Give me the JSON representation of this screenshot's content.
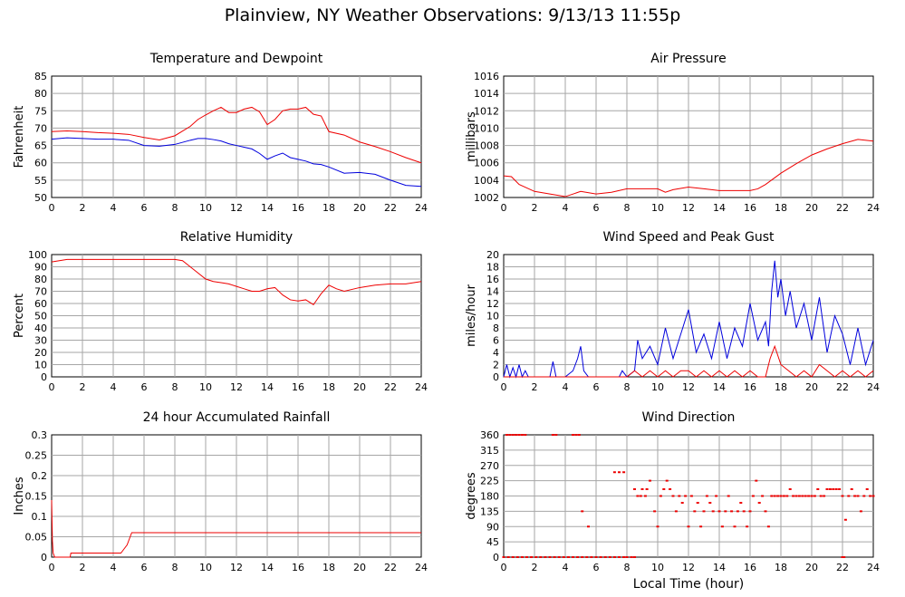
{
  "page": {
    "title": "Plainview, NY Weather Observations: 9/13/13 11:55p",
    "x_axis_label": "Local Time (hour)"
  },
  "colors": {
    "red": "#ee0000",
    "blue": "#0000dd"
  },
  "chart_data": [
    {
      "id": "temp",
      "type": "line",
      "title": "Temperature and Dewpoint",
      "ylabel": "Fahrenheit",
      "xlabel": "",
      "xlim": [
        0,
        24
      ],
      "ylim": [
        50,
        85
      ],
      "xticks": [
        0,
        2,
        4,
        6,
        8,
        10,
        12,
        14,
        16,
        18,
        20,
        22,
        24
      ],
      "yticks": [
        50,
        55,
        60,
        65,
        70,
        75,
        80,
        85
      ],
      "grid": true,
      "series": [
        {
          "color": "#ee0000",
          "x": [
            0,
            1,
            2,
            3,
            4,
            5,
            6,
            7,
            8,
            9,
            9.5,
            10,
            10.5,
            11,
            11.5,
            12,
            12.5,
            13,
            13.5,
            14,
            14.5,
            15,
            15.5,
            16,
            16.5,
            17,
            17.5,
            18,
            19,
            20,
            21,
            22,
            23,
            24
          ],
          "y": [
            69,
            69.2,
            69,
            68.7,
            68.5,
            68.2,
            67.3,
            66.6,
            67.8,
            70.5,
            72.5,
            73.8,
            75,
            76,
            74.5,
            74.5,
            75.5,
            76,
            74.7,
            71,
            72.5,
            75,
            75.5,
            75.5,
            76,
            74,
            73.5,
            69,
            68,
            66,
            64.7,
            63.2,
            61.5,
            60
          ]
        },
        {
          "color": "#0000dd",
          "x": [
            0,
            1,
            2,
            3,
            4,
            5,
            6,
            7,
            8,
            9,
            9.5,
            10,
            10.5,
            11,
            11.5,
            12,
            12.5,
            13,
            13.5,
            14,
            14.5,
            15,
            15.5,
            16,
            16.5,
            17,
            17.5,
            18,
            19,
            20,
            21,
            22,
            23,
            24
          ],
          "y": [
            66.8,
            67.2,
            67,
            66.8,
            66.8,
            66.5,
            65,
            64.8,
            65.3,
            66.5,
            67,
            67,
            66.7,
            66.3,
            65.5,
            65,
            64.5,
            64,
            62.7,
            61,
            62,
            62.8,
            61.5,
            61,
            60.5,
            59.7,
            59.5,
            58.8,
            57,
            57.2,
            56.7,
            55,
            53.5,
            53.2
          ]
        }
      ]
    },
    {
      "id": "pressure",
      "type": "line",
      "title": "Air Pressure",
      "ylabel": "millibars",
      "xlabel": "",
      "xlim": [
        0,
        24
      ],
      "ylim": [
        1002,
        1016
      ],
      "xticks": [
        0,
        2,
        4,
        6,
        8,
        10,
        12,
        14,
        16,
        18,
        20,
        22,
        24
      ],
      "yticks": [
        1002,
        1004,
        1006,
        1008,
        1010,
        1012,
        1014,
        1016
      ],
      "grid": true,
      "series": [
        {
          "color": "#ee0000",
          "x": [
            0,
            0.5,
            1,
            2,
            3,
            4,
            5,
            6,
            7,
            8,
            9,
            10,
            10.5,
            11,
            12,
            13,
            14,
            15,
            16,
            16.5,
            17,
            18,
            19,
            20,
            21,
            22,
            23,
            24
          ],
          "y": [
            1004.5,
            1004.4,
            1003.5,
            1002.7,
            1002.4,
            1002.1,
            1002.7,
            1002.4,
            1002.6,
            1003,
            1003,
            1003,
            1002.6,
            1002.9,
            1003.2,
            1003,
            1002.8,
            1002.8,
            1002.8,
            1003,
            1003.5,
            1004.8,
            1005.9,
            1006.9,
            1007.6,
            1008.2,
            1008.7,
            1008.5
          ]
        }
      ]
    },
    {
      "id": "humidity",
      "type": "line",
      "title": "Relative Humidity",
      "ylabel": "Percent",
      "xlabel": "",
      "xlim": [
        0,
        24
      ],
      "ylim": [
        0,
        100
      ],
      "xticks": [
        0,
        2,
        4,
        6,
        8,
        10,
        12,
        14,
        16,
        18,
        20,
        22,
        24
      ],
      "yticks": [
        0,
        10,
        20,
        30,
        40,
        50,
        60,
        70,
        80,
        90,
        100
      ],
      "grid": true,
      "series": [
        {
          "color": "#ee0000",
          "x": [
            0,
            0.5,
            1,
            2,
            3,
            4,
            5,
            6,
            7,
            8,
            8.5,
            9,
            9.5,
            10,
            10.5,
            11,
            11.5,
            12,
            12.5,
            13,
            13.5,
            14,
            14.5,
            15,
            15.5,
            16,
            16.5,
            17,
            17.5,
            18,
            18.5,
            19,
            20,
            21,
            22,
            23,
            24
          ],
          "y": [
            94,
            95,
            96,
            96,
            96,
            96,
            96,
            96,
            96,
            96,
            95,
            90,
            85,
            80,
            78,
            77,
            76,
            74,
            72,
            70,
            70,
            72,
            73,
            67,
            63,
            62,
            63,
            59,
            68,
            75,
            72,
            70,
            73,
            75,
            76,
            76,
            78
          ]
        }
      ]
    },
    {
      "id": "wind",
      "type": "line",
      "title": "Wind Speed and Peak Gust",
      "ylabel": "miles/hour",
      "xlabel": "",
      "xlim": [
        0,
        24
      ],
      "ylim": [
        0,
        20
      ],
      "xticks": [
        0,
        2,
        4,
        6,
        8,
        10,
        12,
        14,
        16,
        18,
        20,
        22,
        24
      ],
      "yticks": [
        0,
        2,
        4,
        6,
        8,
        10,
        12,
        14,
        16,
        18,
        20
      ],
      "grid": true,
      "series": [
        {
          "color": "#0000dd",
          "x": [
            0,
            0.2,
            0.4,
            0.6,
            0.8,
            1,
            1.2,
            1.4,
            1.6,
            3,
            3.2,
            3.4,
            4,
            4.5,
            4.8,
            5,
            5.2,
            5.5,
            6,
            7,
            7.5,
            7.7,
            8,
            8.5,
            8.7,
            9,
            9.5,
            10,
            10.5,
            11,
            11.5,
            12,
            12.5,
            13,
            13.5,
            14,
            14.5,
            15,
            15.5,
            16,
            16.5,
            17,
            17.2,
            17.4,
            17.6,
            17.8,
            18,
            18.3,
            18.6,
            19,
            19.5,
            20,
            20.5,
            21,
            21.5,
            22,
            22.5,
            23,
            23.5,
            24
          ],
          "y": [
            0,
            2,
            0,
            1.5,
            0,
            2,
            0,
            1,
            0,
            0,
            2.5,
            0,
            0,
            1,
            3,
            5,
            1,
            0,
            0,
            0,
            0,
            1,
            0,
            1,
            6,
            3,
            5,
            2,
            8,
            3,
            7,
            11,
            4,
            7,
            3,
            9,
            3,
            8,
            5,
            12,
            6,
            9,
            5,
            14,
            19,
            13,
            16,
            10,
            14,
            8,
            12,
            6,
            13,
            4,
            10,
            7,
            2,
            8,
            2,
            6
          ]
        },
        {
          "color": "#ee0000",
          "x": [
            0,
            8,
            8.5,
            9,
            9.5,
            10,
            10.5,
            11,
            11.5,
            12,
            12.5,
            13,
            13.5,
            14,
            14.5,
            15,
            15.5,
            16,
            16.5,
            17,
            17.3,
            17.6,
            18,
            18.5,
            19,
            19.5,
            20,
            20.5,
            21,
            21.5,
            22,
            22.5,
            23,
            23.5,
            24
          ],
          "y": [
            0,
            0,
            1,
            0,
            1,
            0,
            1,
            0,
            1,
            1,
            0,
            1,
            0,
            1,
            0,
            1,
            0,
            1,
            0,
            0,
            3,
            5,
            2,
            1,
            0,
            1,
            0,
            2,
            1,
            0,
            1,
            0,
            1,
            0,
            1
          ]
        }
      ]
    },
    {
      "id": "rain",
      "type": "line",
      "title": "24 hour Accumulated Rainfall",
      "ylabel": "Inches",
      "xlabel": "",
      "xlim": [
        0,
        24
      ],
      "ylim": [
        0,
        0.3
      ],
      "xticks": [
        0,
        2,
        4,
        6,
        8,
        10,
        12,
        14,
        16,
        18,
        20,
        22,
        24
      ],
      "yticks": [
        0,
        0.05,
        0.1,
        0.15,
        0.2,
        0.25,
        0.3
      ],
      "grid": true,
      "series": [
        {
          "color": "#ee0000",
          "x": [
            0,
            0.02,
            0.05,
            0.1,
            0.2,
            1.2,
            1.25,
            4.5,
            4.7,
            4.9,
            5,
            5.1,
            5.2,
            24
          ],
          "y": [
            0.14,
            0.1,
            0.04,
            0.01,
            0,
            0,
            0.01,
            0.01,
            0.02,
            0.03,
            0.04,
            0.05,
            0.06,
            0.06
          ]
        }
      ]
    },
    {
      "id": "direction",
      "type": "scatter",
      "title": "Wind Direction",
      "ylabel": "degrees",
      "xlabel": "Local Time (hour)",
      "xlim": [
        0,
        24
      ],
      "ylim": [
        0,
        360
      ],
      "xticks": [
        0,
        2,
        4,
        6,
        8,
        10,
        12,
        14,
        16,
        18,
        20,
        22,
        24
      ],
      "yticks": [
        0,
        45,
        90,
        135,
        180,
        225,
        270,
        315,
        360
      ],
      "grid": true,
      "series": [
        {
          "color": "#ee0000",
          "x": [
            0.2,
            0.4,
            0.6,
            0.8,
            1,
            1.2,
            1.4,
            3.2,
            3.4,
            4.5,
            4.7,
            4.9,
            5.1,
            5.5,
            7.2,
            7.5,
            7.8,
            8.5,
            8.7,
            8.9,
            9,
            9.2,
            9.3,
            9.5,
            9.8,
            10,
            10.2,
            10.4,
            10.6,
            10.8,
            11,
            11.2,
            11.4,
            11.6,
            11.8,
            12,
            12.2,
            12.4,
            12.6,
            12.8,
            13,
            13.2,
            13.4,
            13.6,
            13.8,
            14,
            14.2,
            14.4,
            14.6,
            14.8,
            15,
            15.2,
            15.4,
            15.6,
            15.8,
            16,
            16.2,
            16.4,
            16.6,
            16.8,
            17,
            17.2,
            17.4,
            17.6,
            17.8,
            18,
            18.2,
            18.4,
            18.6,
            18.8,
            19,
            19.2,
            19.4,
            19.6,
            19.8,
            20,
            20.2,
            20.4,
            20.6,
            20.8,
            21,
            21.2,
            21.4,
            21.6,
            21.8,
            22,
            22.2,
            22.4,
            22.6,
            22.8,
            23,
            23.2,
            23.4,
            23.6,
            23.8,
            24
          ],
          "y": [
            360,
            360,
            360,
            360,
            360,
            360,
            360,
            360,
            360,
            360,
            360,
            360,
            135,
            90,
            250,
            250,
            250,
            200,
            180,
            180,
            200,
            180,
            200,
            225,
            135,
            90,
            180,
            200,
            225,
            200,
            180,
            135,
            180,
            160,
            180,
            90,
            180,
            135,
            160,
            90,
            135,
            180,
            160,
            135,
            180,
            135,
            90,
            135,
            180,
            135,
            90,
            135,
            160,
            135,
            90,
            135,
            180,
            225,
            160,
            180,
            135,
            90,
            180,
            180,
            180,
            180,
            180,
            180,
            200,
            180,
            180,
            180,
            180,
            180,
            180,
            180,
            180,
            200,
            180,
            180,
            200,
            200,
            200,
            200,
            200,
            180,
            110,
            180,
            200,
            180,
            180,
            135,
            180,
            200,
            180,
            180
          ]
        },
        {
          "color": "#ee0000",
          "x": [
            0,
            0.3,
            0.6,
            0.9,
            1.2,
            1.5,
            1.8,
            2.1,
            2.4,
            2.7,
            3,
            3.3,
            3.6,
            3.9,
            4.2,
            4.5,
            4.8,
            5.1,
            5.4,
            5.7,
            6,
            6.3,
            6.6,
            6.9,
            7.2,
            7.5,
            7.8,
            8,
            8.3,
            8.5,
            22,
            22.1
          ],
          "y": [
            0,
            0,
            0,
            0,
            0,
            0,
            0,
            0,
            0,
            0,
            0,
            0,
            0,
            0,
            0,
            0,
            0,
            0,
            0,
            0,
            0,
            0,
            0,
            0,
            0,
            0,
            0,
            0,
            0,
            0,
            0,
            0
          ]
        }
      ]
    }
  ]
}
